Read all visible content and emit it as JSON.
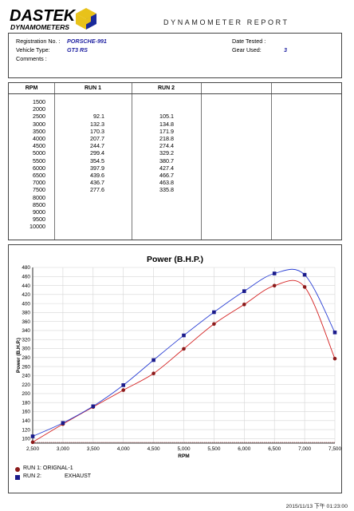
{
  "header": {
    "logo_line1": "DASTEK",
    "logo_line2": "DYNAMOMETERS",
    "report_title": "DYNAMOMETER REPORT"
  },
  "info": {
    "registration_label": "Registration No. :",
    "registration_value": "PORSCHE-991",
    "vehicle_label": "Vehicle Type:",
    "vehicle_value": "GT3 RS",
    "comments_label": "Comments :",
    "date_label": "Date Tested :",
    "gear_label": "Gear Used:",
    "gear_value": "3"
  },
  "table": {
    "headers": [
      "RPM",
      "RUN 1",
      "RUN 2"
    ],
    "rpm": [
      "1500",
      "2000",
      "2500",
      "3000",
      "3500",
      "4000",
      "4500",
      "5000",
      "5500",
      "6000",
      "6500",
      "7000",
      "7500",
      "8000",
      "8500",
      "9000",
      "9500",
      "10000"
    ],
    "run1": [
      "",
      "",
      "92.1",
      "132.3",
      "170.3",
      "207.7",
      "244.7",
      "299.4",
      "354.5",
      "397.9",
      "439.6",
      "436.7",
      "277.6",
      "",
      "",
      "",
      "",
      ""
    ],
    "run2": [
      "",
      "",
      "105.1",
      "134.8",
      "171.9",
      "218.8",
      "274.4",
      "329.2",
      "380.7",
      "427.4",
      "466.7",
      "463.8",
      "335.8",
      "",
      "",
      "",
      "",
      ""
    ]
  },
  "chart_data": {
    "type": "line",
    "title": "Power (B.H.P.)",
    "xlabel": "RPM",
    "ylabel": "Power (B.H.P.)",
    "xlim": [
      2500,
      7500
    ],
    "ylim": [
      90,
      480
    ],
    "x_ticks": [
      "2,500",
      "3,000",
      "3,500",
      "4,000",
      "4,500",
      "5,000",
      "5,500",
      "6,000",
      "6,500",
      "7,000",
      "7,500"
    ],
    "y_ticks": [
      "100",
      "120",
      "140",
      "160",
      "180",
      "200",
      "220",
      "240",
      "260",
      "280",
      "300",
      "320",
      "340",
      "360",
      "380",
      "400",
      "420",
      "440",
      "460",
      "480"
    ],
    "grid": true,
    "series": [
      {
        "name": "RUN 1: ORIGNAL-1",
        "color": "#d42020",
        "marker_color": "#8b1a1a",
        "x": [
          2500,
          3000,
          3500,
          4000,
          4500,
          5000,
          5500,
          6000,
          6500,
          7000,
          7500
        ],
        "values": [
          92.1,
          132.3,
          170.3,
          207.7,
          244.7,
          299.4,
          354.5,
          397.9,
          439.6,
          436.7,
          277.6
        ]
      },
      {
        "name": "RUN 2:",
        "color": "#2a3fd4",
        "marker_color": "#1a1a8b",
        "x": [
          2500,
          3000,
          3500,
          4000,
          4500,
          5000,
          5500,
          6000,
          6500,
          7000,
          7500
        ],
        "values": [
          105.1,
          134.8,
          171.9,
          218.8,
          274.4,
          329.2,
          380.7,
          427.4,
          466.7,
          463.8,
          335.8
        ]
      }
    ]
  },
  "legend": {
    "run1_label": "RUN 1: ORIGNAL-1",
    "run2_label": "RUN 2:",
    "run2_desc": "EXHAUST"
  },
  "footer": {
    "timestamp": "2015/11/13 下午 01:23:00"
  }
}
